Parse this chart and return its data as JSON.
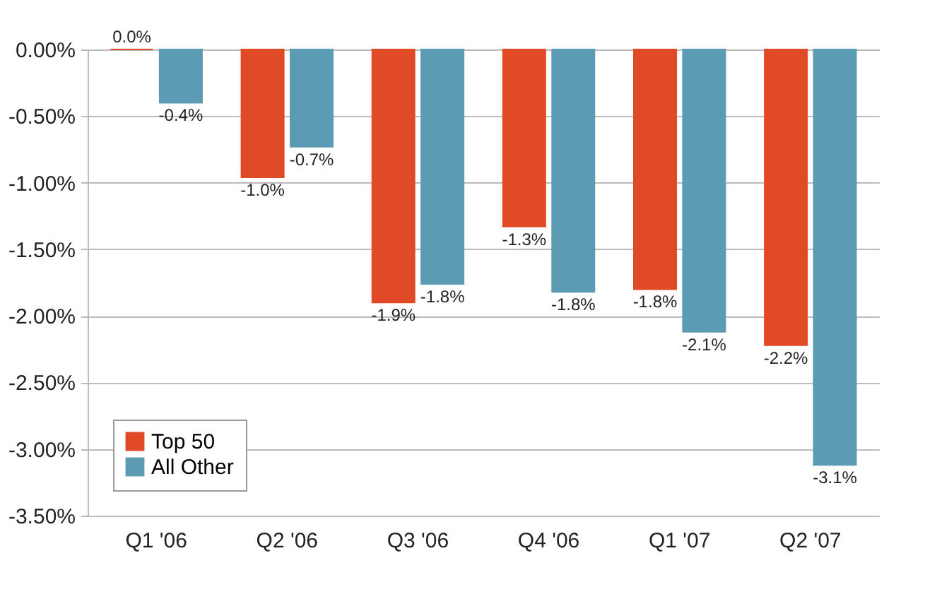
{
  "chart_data": {
    "type": "bar",
    "categories": [
      "Q1 '06",
      "Q2 '06",
      "Q3 '06",
      "Q4 '06",
      "Q1 '07",
      "Q2 '07"
    ],
    "series": [
      {
        "name": "Top 50",
        "color": "#e04a26",
        "values": [
          0.0,
          -0.96,
          -1.9,
          -1.33,
          -1.8,
          -2.22
        ],
        "value_labels": [
          "0.0%",
          "-1.0%",
          "-1.9%",
          "-1.3%",
          "-1.8%",
          "-2.2%"
        ]
      },
      {
        "name": "All Other",
        "color": "#5b9bb3",
        "values": [
          -0.4,
          -0.73,
          -1.76,
          -1.82,
          -2.12,
          -3.12
        ],
        "value_labels": [
          "-0.4%",
          "-0.7%",
          "-1.8%",
          "-1.8%",
          "-2.1%",
          "-3.1%"
        ]
      }
    ],
    "ylim": [
      -3.5,
      0
    ],
    "yticks": [
      {
        "value": 0,
        "label": "0.00%"
      },
      {
        "value": -0.5,
        "label": "-0.50%"
      },
      {
        "value": -1,
        "label": "-1.00%"
      },
      {
        "value": -1.5,
        "label": "-1.50%"
      },
      {
        "value": -2,
        "label": "-2.00%"
      },
      {
        "value": -2.5,
        "label": "-2.50%"
      },
      {
        "value": -3,
        "label": "-3.00%"
      },
      {
        "value": -3.5,
        "label": "-3.50%"
      }
    ],
    "grid": "y",
    "legend": "bottom left"
  }
}
